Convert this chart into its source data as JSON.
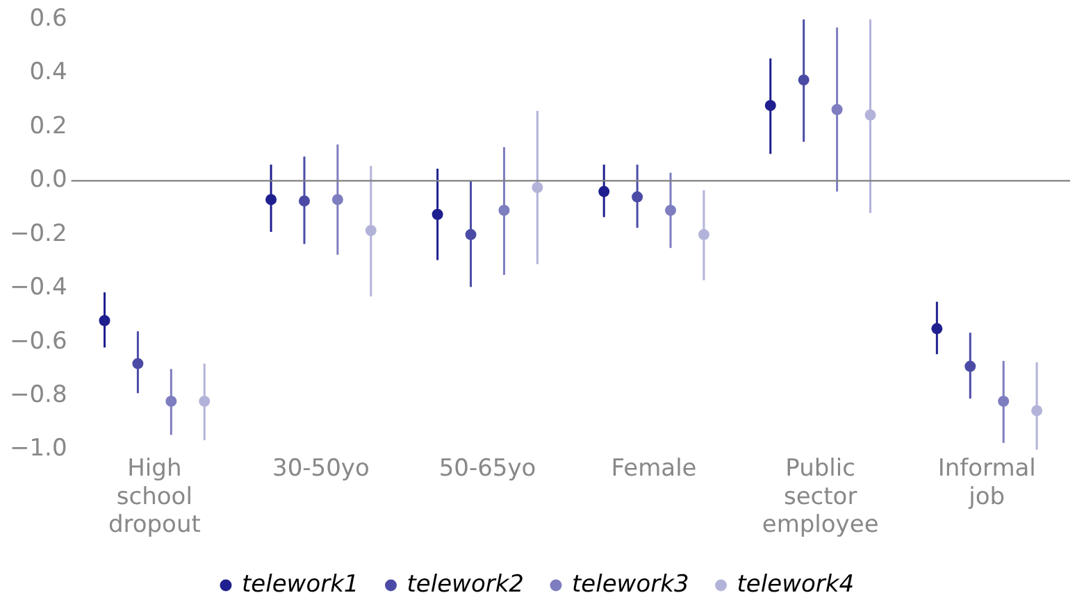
{
  "chart_data": {
    "type": "scatter",
    "categories": [
      "High school dropout",
      "30-50yo",
      "50-65yo",
      "Female",
      "Public sector employee",
      "Informal job"
    ],
    "series": [
      {
        "name": "telework1",
        "color": "#1f1f8f",
        "values": [
          -0.52,
          -0.07,
          -0.125,
          -0.04,
          0.28,
          -0.55
        ],
        "errors": [
          [
            -0.62,
            -0.415
          ],
          [
            -0.19,
            0.06
          ],
          [
            -0.295,
            0.045
          ],
          [
            -0.135,
            0.06
          ],
          [
            0.1,
            0.455
          ],
          [
            -0.645,
            -0.45
          ]
        ]
      },
      {
        "name": "telework2",
        "color": "#4b4ba6",
        "values": [
          -0.68,
          -0.075,
          -0.2,
          -0.06,
          0.375,
          -0.69
        ],
        "errors": [
          [
            -0.79,
            -0.56
          ],
          [
            -0.235,
            0.09
          ],
          [
            -0.395,
            0.0
          ],
          [
            -0.175,
            0.06
          ],
          [
            0.145,
            0.6
          ],
          [
            -0.81,
            -0.565
          ]
        ]
      },
      {
        "name": "telework3",
        "color": "#7d7dbf",
        "values": [
          -0.82,
          -0.07,
          -0.11,
          -0.11,
          0.265,
          -0.82
        ],
        "errors": [
          [
            -0.945,
            -0.7
          ],
          [
            -0.275,
            0.135
          ],
          [
            -0.35,
            0.125
          ],
          [
            -0.25,
            0.03
          ],
          [
            -0.04,
            0.57
          ],
          [
            -0.975,
            -0.67
          ]
        ]
      },
      {
        "name": "telework4",
        "color": "#b3b3da",
        "values": [
          -0.82,
          -0.185,
          -0.025,
          -0.2,
          0.245,
          -0.855
        ],
        "errors": [
          [
            -0.965,
            -0.68
          ],
          [
            -0.43,
            0.055
          ],
          [
            -0.31,
            0.26
          ],
          [
            -0.37,
            -0.035
          ],
          [
            -0.12,
            0.6
          ],
          [
            -1.0,
            -0.675
          ]
        ]
      }
    ],
    "ylim": [
      -1.0,
      0.6
    ],
    "yticks": [
      {
        "value": -1.0,
        "label": "−1.0"
      },
      {
        "value": -0.8,
        "label": "−0.8"
      },
      {
        "value": -0.6,
        "label": "−0.6"
      },
      {
        "value": -0.4,
        "label": "−0.4"
      },
      {
        "value": -0.2,
        "label": "−0.2"
      },
      {
        "value": 0,
        "label": "0.0"
      },
      {
        "value": 0.2,
        "label": "0.2"
      },
      {
        "value": 0.4,
        "label": "0.4"
      },
      {
        "value": 0.6,
        "label": "0.6"
      }
    ],
    "ref_lines": [
      {
        "axis": "y",
        "value": 0,
        "color": "#808080"
      }
    ],
    "grid": false,
    "legend": "bottom",
    "marker": "circle"
  }
}
